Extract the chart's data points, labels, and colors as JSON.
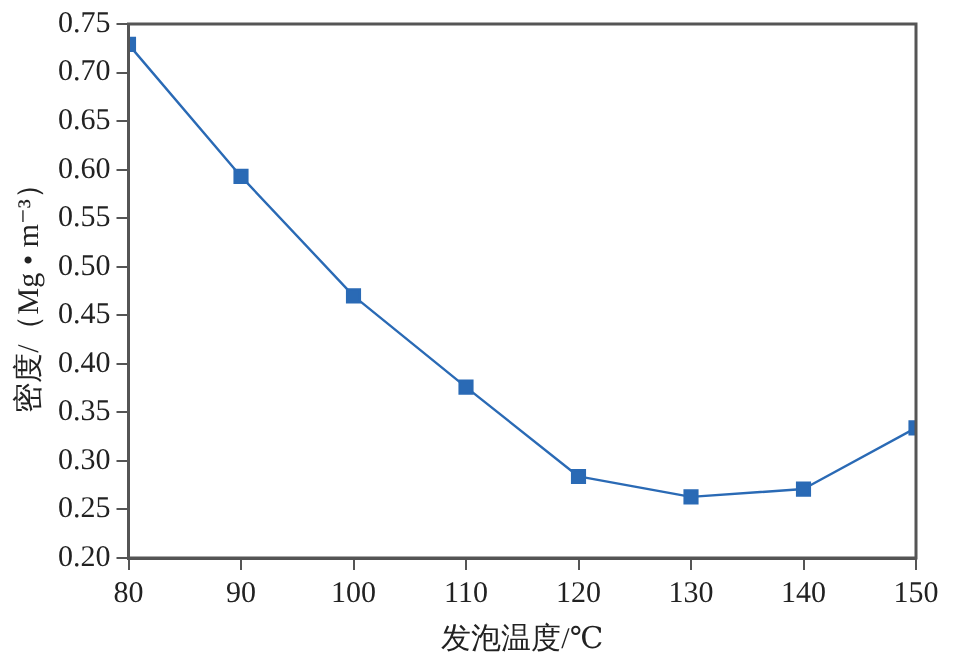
{
  "chart_data": {
    "type": "line",
    "xlabel": "发泡温度/℃",
    "ylabel": "密度/（Mg • m⁻³）",
    "x": [
      80,
      90,
      100,
      110,
      120,
      130,
      140,
      150
    ],
    "series": [
      {
        "color": "#2a6ab5",
        "values": [
          0.729,
          0.593,
          0.47,
          0.376,
          0.284,
          0.263,
          0.271,
          0.334
        ]
      }
    ],
    "xlim": [
      80,
      150
    ],
    "xticks": [
      80,
      90,
      100,
      110,
      120,
      130,
      140,
      150
    ],
    "ylim": [
      0.2,
      0.75
    ],
    "yticks": [
      {
        "value": 0.2,
        "label": "0.20"
      },
      0.25,
      {
        "value": 0.3,
        "label": "0.30"
      },
      0.35,
      {
        "value": 0.4,
        "label": "0.40"
      },
      0.45,
      {
        "value": 0.5,
        "label": "0.50"
      },
      0.55,
      {
        "value": 0.6,
        "label": "0.60"
      },
      0.65,
      {
        "value": 0.7,
        "label": "0.70"
      },
      0.75
    ],
    "grid": false,
    "legend": false,
    "marker": "square",
    "line_style": "solid"
  }
}
